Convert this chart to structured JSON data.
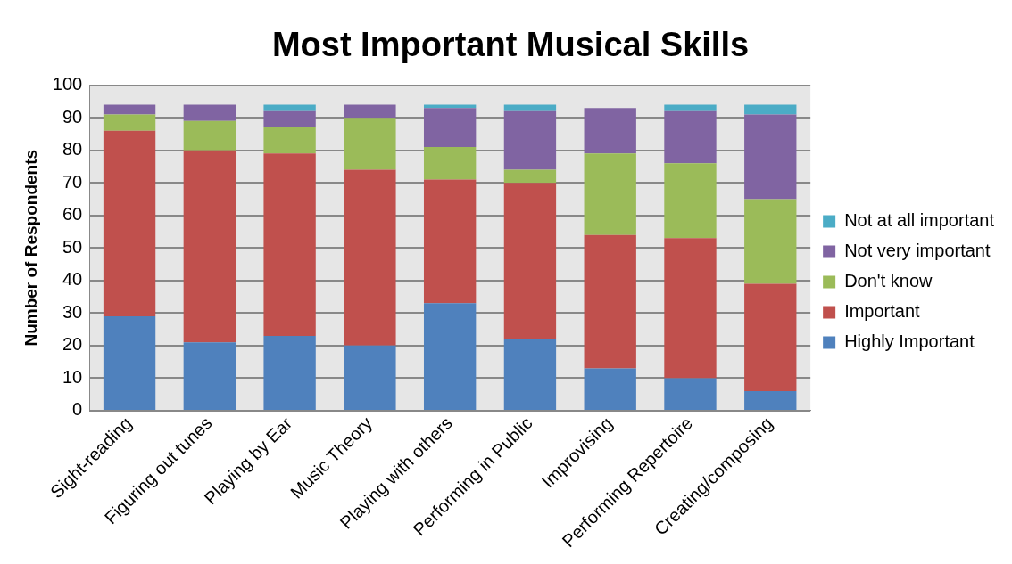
{
  "chart_data": {
    "type": "bar",
    "title": "Most Important Musical Skills",
    "ylabel": "Number of Respondents",
    "categories": [
      "Sight-reading",
      "Figuring out tunes",
      "Playing by Ear",
      "Music Theory",
      "Playing with others",
      "Performing in Public",
      "Improvising",
      "Performing Repertoire",
      "Creating/composing"
    ],
    "series": [
      {
        "name": "Highly Important",
        "color": "#4f81bd",
        "values": [
          29,
          21,
          23,
          20,
          33,
          22,
          13,
          10,
          6
        ]
      },
      {
        "name": "Important",
        "color": "#c0504d",
        "values": [
          57,
          59,
          56,
          54,
          38,
          48,
          41,
          43,
          33
        ]
      },
      {
        "name": "Don't know",
        "color": "#9bbb59",
        "values": [
          5,
          9,
          8,
          16,
          10,
          4,
          25,
          23,
          26
        ]
      },
      {
        "name": "Not very important",
        "color": "#8064a2",
        "values": [
          3,
          5,
          5,
          4,
          12,
          18,
          14,
          16,
          26
        ]
      },
      {
        "name": "Not at all important",
        "color": "#4bacc6",
        "values": [
          0,
          0,
          2,
          0,
          1,
          2,
          0,
          2,
          3
        ]
      }
    ],
    "stacked": true,
    "ylim": [
      0,
      100
    ],
    "yticks": [
      0,
      10,
      20,
      30,
      40,
      50,
      60,
      70,
      80,
      90,
      100
    ],
    "grid": "y",
    "legend": "right"
  }
}
